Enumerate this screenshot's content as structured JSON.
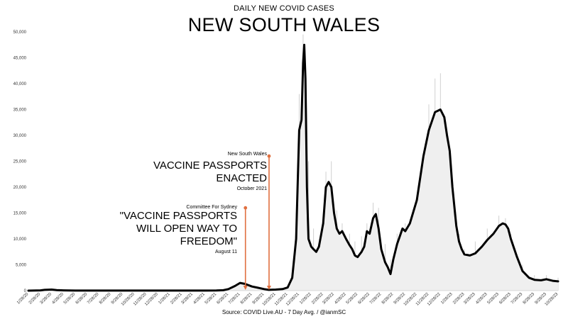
{
  "chart_data": {
    "type": "line",
    "subtitle": "DAILY NEW COVID CASES",
    "title": "NEW SOUTH WALES",
    "source": "Source: COVID Live.AU - 7 Day Avg. / @ianmSC",
    "ylim": [
      0,
      50000
    ],
    "y_ticks": [
      0,
      5000,
      10000,
      15000,
      20000,
      25000,
      30000,
      35000,
      40000,
      45000,
      50000
    ],
    "y_tick_labels": [
      "0",
      "5,000",
      "10,000",
      "15,000",
      "20,000",
      "25,000",
      "30,000",
      "35,000",
      "40,000",
      "45,000",
      "50,000"
    ],
    "x_tick_labels": [
      "1/28/20",
      "2/28/20",
      "3/28/20",
      "4/28/20",
      "5/28/20",
      "6/28/20",
      "7/28/20",
      "8/28/20",
      "9/28/20",
      "10/28/20",
      "11/28/20",
      "12/28/20",
      "1/28/21",
      "2/28/21",
      "3/28/21",
      "4/28/21",
      "5/28/21",
      "6/28/21",
      "7/28/21",
      "8/28/21",
      "9/28/21",
      "10/28/21",
      "11/28/21",
      "12/28/21",
      "1/28/22",
      "2/28/22",
      "3/28/22",
      "4/28/22",
      "5/28/22",
      "6/28/22",
      "7/28/22",
      "8/28/22",
      "9/28/22",
      "10/28/22",
      "11/28/22",
      "12/28/22",
      "1/28/23",
      "2/28/23",
      "3/28/23",
      "4/28/23",
      "5/28/23",
      "6/28/23",
      "7/28/23",
      "8/28/23",
      "9/28/23",
      "10/28/23"
    ],
    "grid": false,
    "series": [
      {
        "type": "line",
        "x": [
          "1/28/20",
          "2/28/20",
          "3/10/20",
          "3/28/20",
          "4/10/20",
          "4/28/20",
          "5/28/20",
          "6/28/20",
          "7/28/20",
          "8/28/20",
          "9/28/20",
          "10/28/20",
          "11/28/20",
          "12/28/20",
          "1/28/21",
          "2/28/21",
          "3/28/21",
          "4/28/21",
          "5/28/21",
          "6/15/21",
          "6/28/21",
          "7/15/21",
          "7/28/21",
          "8/10/21",
          "8/28/21",
          "9/10/21",
          "9/28/21",
          "10/10/21",
          "10/28/21",
          "11/15/21",
          "11/28/21",
          "12/10/21",
          "12/20/21",
          "12/28/21",
          "1/3/22",
          "1/7/22",
          "1/10/22",
          "1/13/22",
          "1/17/22",
          "1/21/22",
          "1/28/22",
          "2/3/22",
          "2/10/22",
          "2/17/22",
          "2/28/22",
          "3/7/22",
          "3/14/22",
          "3/21/22",
          "3/28/22",
          "4/4/22",
          "4/11/22",
          "4/18/22",
          "4/28/22",
          "5/7/22",
          "5/14/22",
          "5/21/22",
          "5/28/22",
          "6/7/22",
          "6/14/22",
          "6/21/22",
          "6/28/22",
          "7/7/22",
          "7/14/22",
          "7/21/22",
          "7/28/22",
          "8/7/22",
          "8/14/22",
          "8/21/22",
          "8/28/22",
          "9/7/22",
          "9/14/22",
          "9/21/22",
          "9/28/22",
          "10/10/22",
          "10/28/22",
          "11/14/22",
          "11/28/22",
          "12/14/22",
          "12/28/22",
          "1/7/23",
          "1/14/23",
          "1/21/23",
          "1/28/23",
          "2/7/23",
          "2/14/23",
          "2/21/23",
          "2/28/23",
          "3/14/23",
          "3/28/23",
          "4/14/23",
          "4/28/23",
          "5/14/23",
          "5/28/23",
          "6/7/23",
          "6/14/23",
          "6/21/23",
          "6/28/23",
          "7/14/23",
          "7/28/23",
          "8/14/23",
          "8/28/23",
          "9/14/23",
          "9/28/23",
          "10/14/23",
          "10/28/23"
        ],
        "values": [
          0,
          50,
          150,
          200,
          100,
          50,
          20,
          20,
          20,
          20,
          20,
          20,
          20,
          20,
          20,
          20,
          20,
          20,
          30,
          80,
          300,
          900,
          1500,
          1300,
          800,
          600,
          300,
          150,
          200,
          300,
          600,
          2500,
          10000,
          31000,
          33000,
          44000,
          47500,
          41000,
          20000,
          10000,
          8500,
          8000,
          7500,
          8500,
          13000,
          20000,
          21000,
          20000,
          15000,
          12000,
          11000,
          11500,
          10000,
          8800,
          8000,
          6800,
          6500,
          7500,
          8500,
          11500,
          11000,
          14000,
          14800,
          12000,
          8000,
          5500,
          4500,
          3200,
          6000,
          9000,
          10500,
          12000,
          11500,
          13000,
          17500,
          26000,
          31000,
          34500,
          35000,
          33500,
          30000,
          27000,
          20000,
          12500,
          9500,
          8000,
          7000,
          6800,
          7200,
          8500,
          9800,
          11000,
          12500,
          13000,
          12800,
          12000,
          10000,
          6500,
          3800,
          2500,
          2100,
          2000,
          2200,
          1900,
          1800
        ]
      },
      {
        "type": "bar",
        "color": "#d0d0d0",
        "description": "daily values shown as faint gray bars",
        "x": [
          "12/20/21",
          "12/28/21",
          "1/7/22",
          "1/13/22",
          "1/21/22",
          "2/3/22",
          "2/17/22",
          "3/7/22",
          "3/21/22",
          "4/4/22",
          "4/18/22",
          "5/7/22",
          "5/21/22",
          "6/7/22",
          "6/21/22",
          "7/7/22",
          "7/21/22",
          "8/7/22",
          "8/21/22",
          "9/7/22",
          "9/28/22",
          "10/28/22",
          "11/28/22",
          "12/14/22",
          "12/28/22",
          "1/14/23",
          "1/28/23",
          "2/14/23",
          "2/28/23",
          "3/28/23",
          "4/28/23",
          "5/28/23",
          "6/14/23",
          "6/28/23",
          "7/28/23",
          "8/28/23",
          "9/28/23",
          "10/28/23"
        ],
        "values": [
          15000,
          38000,
          49500,
          44000,
          25000,
          12000,
          9000,
          23000,
          25000,
          15500,
          13000,
          11000,
          9500,
          10500,
          13000,
          17000,
          16000,
          9000,
          6000,
          11000,
          13000,
          15000,
          36000,
          41000,
          42000,
          28000,
          19000,
          11000,
          8000,
          9500,
          12000,
          14500,
          14000,
          11000,
          5000,
          3000,
          3000,
          2500
        ]
      }
    ],
    "line_color": "#000000",
    "annotations": [
      {
        "date": "8/11/21",
        "value": 16000,
        "color": "#e07040",
        "source": "Committee For Sydney",
        "text_lines": [
          "\"VACCINE PASSPORTS",
          "WILL OPEN WAY TO",
          "FREEDOM\""
        ],
        "date_label": "August 11"
      },
      {
        "date": "10/11/21",
        "value": 26000,
        "color": "#e07040",
        "source": "New South Wales",
        "text_lines": [
          "VACCINE PASSPORTS",
          "ENACTED"
        ],
        "date_label": "October 2021"
      }
    ]
  }
}
